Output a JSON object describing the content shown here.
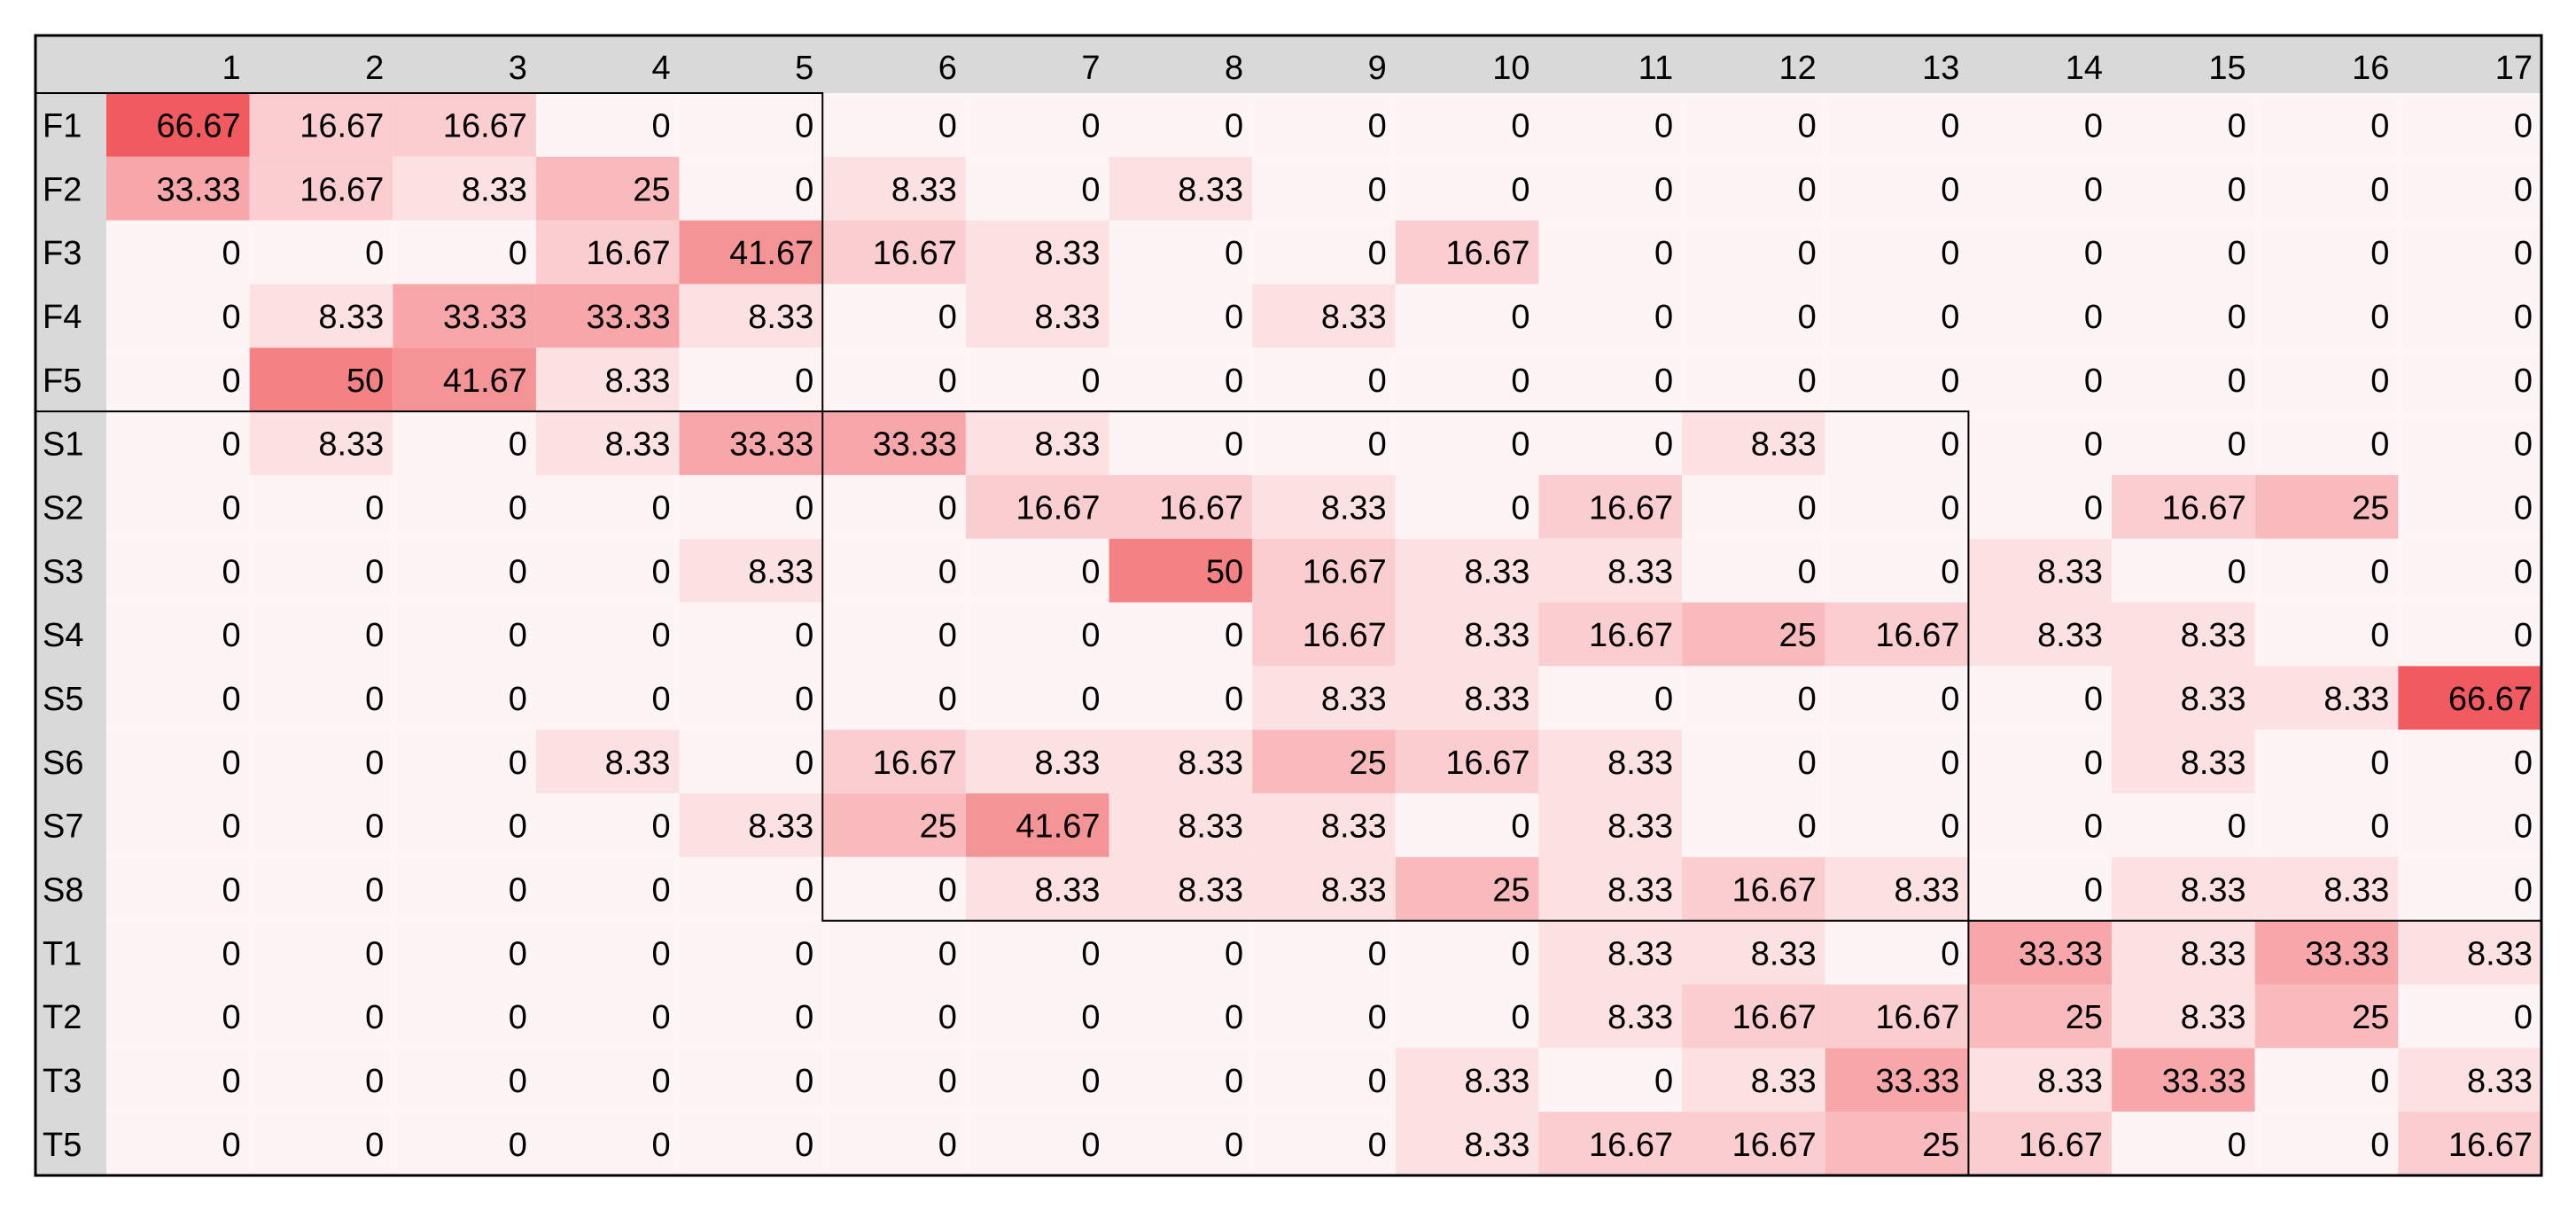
{
  "chart_data": {
    "type": "heatmap",
    "columns": [
      "1",
      "2",
      "3",
      "4",
      "5",
      "6",
      "7",
      "8",
      "9",
      "10",
      "11",
      "12",
      "13",
      "14",
      "15",
      "16",
      "17"
    ],
    "rows": [
      "F1",
      "F2",
      "F3",
      "F4",
      "F5",
      "S1",
      "S2",
      "S3",
      "S4",
      "S5",
      "S6",
      "S7",
      "S8",
      "T1",
      "T2",
      "T3",
      "T5"
    ],
    "values": [
      [
        "66.67",
        "16.67",
        "16.67",
        "0",
        "0",
        "0",
        "0",
        "0",
        "0",
        "0",
        "0",
        "0",
        "0",
        "0",
        "0",
        "0",
        "0"
      ],
      [
        "33.33",
        "16.67",
        "8.33",
        "25",
        "0",
        "8.33",
        "0",
        "8.33",
        "0",
        "0",
        "0",
        "0",
        "0",
        "0",
        "0",
        "0",
        "0"
      ],
      [
        "0",
        "0",
        "0",
        "16.67",
        "41.67",
        "16.67",
        "8.33",
        "0",
        "0",
        "16.67",
        "0",
        "0",
        "0",
        "0",
        "0",
        "0",
        "0"
      ],
      [
        "0",
        "8.33",
        "33.33",
        "33.33",
        "8.33",
        "0",
        "8.33",
        "0",
        "8.33",
        "0",
        "0",
        "0",
        "0",
        "0",
        "0",
        "0",
        "0"
      ],
      [
        "0",
        "50",
        "41.67",
        "8.33",
        "0",
        "0",
        "0",
        "0",
        "0",
        "0",
        "0",
        "0",
        "0",
        "0",
        "0",
        "0",
        "0"
      ],
      [
        "0",
        "8.33",
        "0",
        "8.33",
        "33.33",
        "33.33",
        "8.33",
        "0",
        "0",
        "0",
        "0",
        "8.33",
        "0",
        "0",
        "0",
        "0",
        "0"
      ],
      [
        "0",
        "0",
        "0",
        "0",
        "0",
        "0",
        "16.67",
        "16.67",
        "8.33",
        "0",
        "16.67",
        "0",
        "0",
        "0",
        "16.67",
        "25",
        "0"
      ],
      [
        "0",
        "0",
        "0",
        "0",
        "8.33",
        "0",
        "0",
        "50",
        "16.67",
        "8.33",
        "8.33",
        "0",
        "0",
        "8.33",
        "0",
        "0",
        "0"
      ],
      [
        "0",
        "0",
        "0",
        "0",
        "0",
        "0",
        "0",
        "0",
        "16.67",
        "8.33",
        "16.67",
        "25",
        "16.67",
        "8.33",
        "8.33",
        "0",
        "0"
      ],
      [
        "0",
        "0",
        "0",
        "0",
        "0",
        "0",
        "0",
        "0",
        "8.33",
        "8.33",
        "0",
        "0",
        "0",
        "0",
        "8.33",
        "8.33",
        "66.67"
      ],
      [
        "0",
        "0",
        "0",
        "8.33",
        "0",
        "16.67",
        "8.33",
        "8.33",
        "25",
        "16.67",
        "8.33",
        "0",
        "0",
        "0",
        "8.33",
        "0",
        "0"
      ],
      [
        "0",
        "0",
        "0",
        "0",
        "8.33",
        "25",
        "41.67",
        "8.33",
        "8.33",
        "0",
        "8.33",
        "0",
        "0",
        "0",
        "0",
        "0",
        "0"
      ],
      [
        "0",
        "0",
        "0",
        "0",
        "0",
        "0",
        "8.33",
        "8.33",
        "8.33",
        "25",
        "8.33",
        "16.67",
        "8.33",
        "0",
        "8.33",
        "8.33",
        "0"
      ],
      [
        "0",
        "0",
        "0",
        "0",
        "0",
        "0",
        "0",
        "0",
        "0",
        "0",
        "8.33",
        "8.33",
        "0",
        "33.33",
        "8.33",
        "33.33",
        "8.33"
      ],
      [
        "0",
        "0",
        "0",
        "0",
        "0",
        "0",
        "0",
        "0",
        "0",
        "0",
        "8.33",
        "16.67",
        "16.67",
        "25",
        "8.33",
        "25",
        "0"
      ],
      [
        "0",
        "0",
        "0",
        "0",
        "0",
        "0",
        "0",
        "0",
        "0",
        "8.33",
        "0",
        "8.33",
        "33.33",
        "8.33",
        "33.33",
        "0",
        "8.33"
      ],
      [
        "0",
        "0",
        "0",
        "0",
        "0",
        "0",
        "0",
        "0",
        "0",
        "8.33",
        "16.67",
        "16.67",
        "25",
        "16.67",
        "0",
        "0",
        "16.67"
      ]
    ],
    "value_range": [
      0,
      66.67
    ],
    "color_scale": {
      "low": "#fdf4f6",
      "high": "#f15a5e"
    },
    "header_color": "#d9d9d9",
    "groups": [
      {
        "rows": [
          "F1",
          "F5"
        ],
        "columns": [
          "1",
          "5"
        ]
      },
      {
        "rows": [
          "S1",
          "S8"
        ],
        "columns": [
          "6",
          "13"
        ]
      },
      {
        "rows": [
          "T1",
          "T5"
        ],
        "columns": [
          "14",
          "17"
        ]
      }
    ],
    "grid": false
  }
}
